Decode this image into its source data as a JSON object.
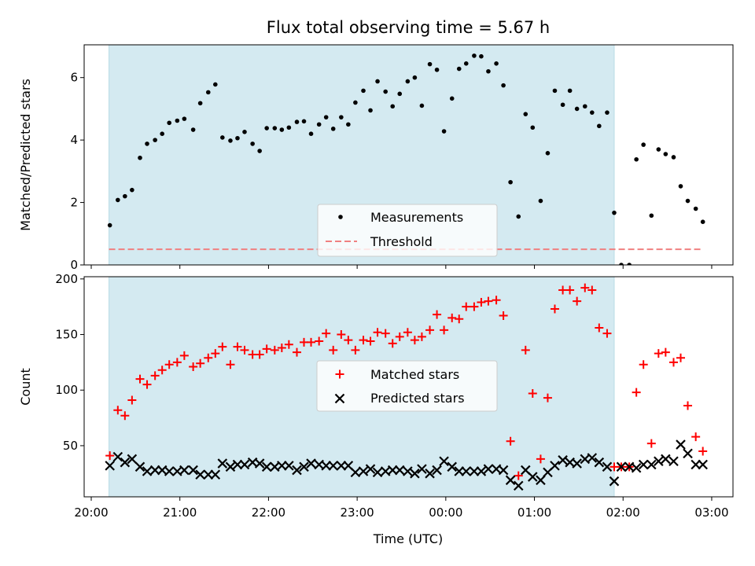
{
  "title": "Flux total observing time = 5.67 h",
  "top_panel": {
    "ylabel": "Matched/Predicted stars",
    "legend": {
      "measurements": "Measurements",
      "threshold": "Threshold"
    }
  },
  "bottom_panel": {
    "ylabel": "Count",
    "xlabel": "Time (UTC)",
    "legend": {
      "matched": "Matched stars",
      "predicted": "Predicted stars"
    }
  },
  "x_tick_labels": [
    "20:00",
    "21:00",
    "22:00",
    "23:00",
    "00:00",
    "01:00",
    "02:00",
    "03:00"
  ],
  "colors": {
    "shade": "#d4eaf1",
    "measurement": "#000000",
    "threshold": "#f08080",
    "matched": "#ff0000",
    "predicted": "#000000"
  },
  "chart_data": [
    {
      "type": "scatter",
      "panel": "top",
      "xlim": [
        19.92,
        27.24
      ],
      "ylim": [
        0,
        7.05
      ],
      "yticks": [
        0,
        2,
        4,
        6
      ],
      "grid": false,
      "legend_position": "lower center",
      "shaded_span": [
        20.2,
        25.9
      ],
      "threshold": {
        "y": 0.5,
        "x_range": [
          20.2,
          26.9
        ]
      },
      "series": [
        {
          "name": "Measurements",
          "points": [
            [
              20.21,
              1.27
            ],
            [
              20.3,
              2.08
            ],
            [
              20.38,
              2.2
            ],
            [
              20.46,
              2.4
            ],
            [
              20.55,
              3.43
            ],
            [
              20.63,
              3.88
            ],
            [
              20.72,
              4.0
            ],
            [
              20.8,
              4.2
            ],
            [
              20.88,
              4.55
            ],
            [
              20.97,
              4.62
            ],
            [
              21.05,
              4.68
            ],
            [
              21.15,
              4.33
            ],
            [
              21.23,
              5.18
            ],
            [
              21.32,
              5.53
            ],
            [
              21.4,
              5.78
            ],
            [
              21.48,
              4.08
            ],
            [
              21.57,
              3.98
            ],
            [
              21.65,
              4.06
            ],
            [
              21.73,
              4.26
            ],
            [
              21.82,
              3.88
            ],
            [
              21.9,
              3.65
            ],
            [
              21.98,
              4.38
            ],
            [
              22.07,
              4.38
            ],
            [
              22.15,
              4.33
            ],
            [
              22.23,
              4.4
            ],
            [
              22.32,
              4.58
            ],
            [
              22.4,
              4.6
            ],
            [
              22.48,
              4.2
            ],
            [
              22.57,
              4.5
            ],
            [
              22.65,
              4.73
            ],
            [
              22.73,
              4.36
            ],
            [
              22.82,
              4.73
            ],
            [
              22.9,
              4.5
            ],
            [
              22.98,
              5.2
            ],
            [
              23.07,
              5.58
            ],
            [
              23.15,
              4.95
            ],
            [
              23.23,
              5.88
            ],
            [
              23.32,
              5.55
            ],
            [
              23.4,
              5.08
            ],
            [
              23.48,
              5.48
            ],
            [
              23.57,
              5.88
            ],
            [
              23.65,
              6.0
            ],
            [
              23.73,
              5.1
            ],
            [
              23.82,
              6.43
            ],
            [
              23.9,
              6.25
            ],
            [
              23.98,
              4.28
            ],
            [
              24.07,
              5.33
            ],
            [
              24.15,
              6.28
            ],
            [
              24.23,
              6.45
            ],
            [
              24.32,
              6.7
            ],
            [
              24.4,
              6.68
            ],
            [
              24.48,
              6.2
            ],
            [
              24.57,
              6.45
            ],
            [
              24.65,
              5.75
            ],
            [
              24.73,
              2.65
            ],
            [
              24.82,
              1.55
            ],
            [
              24.9,
              4.83
            ],
            [
              24.98,
              4.4
            ],
            [
              25.07,
              2.05
            ],
            [
              25.15,
              3.58
            ],
            [
              25.23,
              5.58
            ],
            [
              25.32,
              5.13
            ],
            [
              25.4,
              5.58
            ],
            [
              25.48,
              5.0
            ],
            [
              25.57,
              5.08
            ],
            [
              25.65,
              4.88
            ],
            [
              25.73,
              4.45
            ],
            [
              25.82,
              4.88
            ],
            [
              25.9,
              1.67
            ],
            [
              25.98,
              0.0
            ],
            [
              26.07,
              0.0
            ],
            [
              26.15,
              3.38
            ],
            [
              26.23,
              3.85
            ],
            [
              26.32,
              1.58
            ],
            [
              26.4,
              3.7
            ],
            [
              26.48,
              3.55
            ],
            [
              26.57,
              3.45
            ],
            [
              26.65,
              2.52
            ],
            [
              26.73,
              2.05
            ],
            [
              26.82,
              1.8
            ],
            [
              26.9,
              1.38
            ]
          ]
        }
      ]
    },
    {
      "type": "scatter",
      "panel": "bottom",
      "xlim": [
        19.92,
        27.24
      ],
      "ylim": [
        4,
        202
      ],
      "yticks": [
        50,
        100,
        150,
        200
      ],
      "grid": false,
      "legend_position": "center",
      "shaded_span": [
        20.2,
        25.9
      ],
      "series": [
        {
          "name": "Matched stars",
          "points": [
            [
              20.21,
              41
            ],
            [
              20.3,
              82
            ],
            [
              20.38,
              77
            ],
            [
              20.46,
              91
            ],
            [
              20.55,
              110
            ],
            [
              20.63,
              105
            ],
            [
              20.72,
              113
            ],
            [
              20.8,
              118
            ],
            [
              20.88,
              123
            ],
            [
              20.97,
              125
            ],
            [
              21.05,
              131
            ],
            [
              21.15,
              121
            ],
            [
              21.23,
              124
            ],
            [
              21.32,
              129
            ],
            [
              21.4,
              133
            ],
            [
              21.48,
              139
            ],
            [
              21.57,
              123
            ],
            [
              21.65,
              139
            ],
            [
              21.73,
              136
            ],
            [
              21.82,
              132
            ],
            [
              21.9,
              132
            ],
            [
              21.98,
              137
            ],
            [
              22.07,
              136
            ],
            [
              22.15,
              138
            ],
            [
              22.23,
              141
            ],
            [
              22.32,
              134
            ],
            [
              22.4,
              143
            ],
            [
              22.48,
              143
            ],
            [
              22.57,
              144
            ],
            [
              22.65,
              151
            ],
            [
              22.73,
              136
            ],
            [
              22.82,
              150
            ],
            [
              22.9,
              145
            ],
            [
              22.98,
              136
            ],
            [
              23.07,
              145
            ],
            [
              23.15,
              144
            ],
            [
              23.23,
              152
            ],
            [
              23.32,
              151
            ],
            [
              23.4,
              142
            ],
            [
              23.48,
              148
            ],
            [
              23.57,
              152
            ],
            [
              23.65,
              145
            ],
            [
              23.73,
              148
            ],
            [
              23.82,
              154
            ],
            [
              23.9,
              168
            ],
            [
              23.98,
              154
            ],
            [
              24.07,
              165
            ],
            [
              24.15,
              164
            ],
            [
              24.23,
              175
            ],
            [
              24.32,
              175
            ],
            [
              24.4,
              179
            ],
            [
              24.48,
              180
            ],
            [
              24.57,
              181
            ],
            [
              24.65,
              167
            ],
            [
              24.73,
              54
            ],
            [
              24.82,
              23
            ],
            [
              24.9,
              136
            ],
            [
              24.98,
              97
            ],
            [
              25.07,
              38
            ],
            [
              25.15,
              93
            ],
            [
              25.23,
              173
            ],
            [
              25.32,
              190
            ],
            [
              25.4,
              190
            ],
            [
              25.48,
              180
            ],
            [
              25.57,
              192
            ],
            [
              25.65,
              190
            ],
            [
              25.73,
              156
            ],
            [
              25.82,
              151
            ],
            [
              25.9,
              31
            ],
            [
              25.98,
              31
            ],
            [
              26.07,
              31
            ],
            [
              26.15,
              98
            ],
            [
              26.23,
              123
            ],
            [
              26.32,
              52
            ],
            [
              26.4,
              133
            ],
            [
              26.48,
              134
            ],
            [
              26.57,
              125
            ],
            [
              26.65,
              129
            ],
            [
              26.73,
              86
            ],
            [
              26.82,
              58
            ],
            [
              26.9,
              45
            ]
          ]
        },
        {
          "name": "Predicted stars",
          "points": [
            [
              20.21,
              32
            ],
            [
              20.3,
              40
            ],
            [
              20.38,
              35
            ],
            [
              20.46,
              38
            ],
            [
              20.55,
              31
            ],
            [
              20.63,
              27
            ],
            [
              20.72,
              28
            ],
            [
              20.8,
              28
            ],
            [
              20.88,
              27
            ],
            [
              20.97,
              27
            ],
            [
              21.05,
              28
            ],
            [
              21.15,
              28
            ],
            [
              21.23,
              24
            ],
            [
              21.32,
              24
            ],
            [
              21.4,
              24
            ],
            [
              21.48,
              34
            ],
            [
              21.57,
              31
            ],
            [
              21.65,
              33
            ],
            [
              21.73,
              33
            ],
            [
              21.82,
              35
            ],
            [
              21.9,
              34
            ],
            [
              21.98,
              31
            ],
            [
              22.07,
              31
            ],
            [
              22.15,
              32
            ],
            [
              22.23,
              32
            ],
            [
              22.32,
              28
            ],
            [
              22.4,
              31
            ],
            [
              22.48,
              34
            ],
            [
              22.57,
              33
            ],
            [
              22.65,
              32
            ],
            [
              22.73,
              32
            ],
            [
              22.82,
              32
            ],
            [
              22.9,
              32
            ],
            [
              22.98,
              26
            ],
            [
              23.07,
              27
            ],
            [
              23.15,
              29
            ],
            [
              23.23,
              26
            ],
            [
              23.32,
              27
            ],
            [
              23.4,
              28
            ],
            [
              23.48,
              28
            ],
            [
              23.57,
              27
            ],
            [
              23.65,
              25
            ],
            [
              23.73,
              29
            ],
            [
              23.82,
              25
            ],
            [
              23.9,
              28
            ],
            [
              23.98,
              36
            ],
            [
              24.07,
              31
            ],
            [
              24.15,
              27
            ],
            [
              24.23,
              27
            ],
            [
              24.32,
              27
            ],
            [
              24.4,
              27
            ],
            [
              24.48,
              29
            ],
            [
              24.57,
              29
            ],
            [
              24.65,
              28
            ],
            [
              24.73,
              19
            ],
            [
              24.82,
              14
            ],
            [
              24.9,
              28
            ],
            [
              24.98,
              22
            ],
            [
              25.07,
              19
            ],
            [
              25.15,
              26
            ],
            [
              25.23,
              32
            ],
            [
              25.32,
              37
            ],
            [
              25.4,
              35
            ],
            [
              25.48,
              34
            ],
            [
              25.57,
              38
            ],
            [
              25.65,
              39
            ],
            [
              25.73,
              35
            ],
            [
              25.82,
              31
            ],
            [
              25.9,
              18
            ],
            [
              25.98,
              31
            ],
            [
              26.07,
              31
            ],
            [
              26.15,
              30
            ],
            [
              26.23,
              33
            ],
            [
              26.32,
              33
            ],
            [
              26.4,
              36
            ],
            [
              26.48,
              38
            ],
            [
              26.57,
              36
            ],
            [
              26.65,
              51
            ],
            [
              26.73,
              43
            ],
            [
              26.82,
              33
            ],
            [
              26.9,
              33
            ]
          ]
        }
      ]
    }
  ]
}
